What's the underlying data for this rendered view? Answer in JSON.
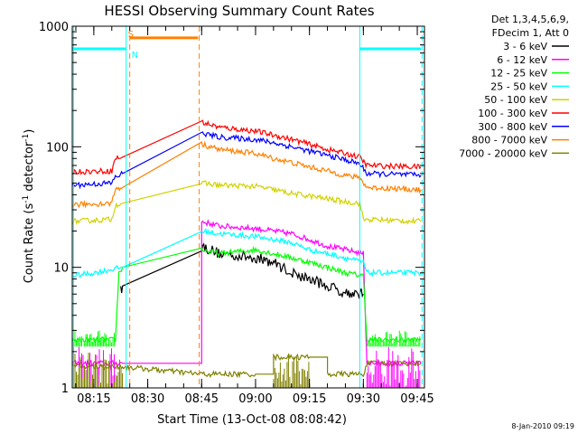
{
  "chart_data": {
    "type": "line",
    "title": "HESSI Observing Summary Count Rates",
    "xlabel": "Start Time (13-Oct-08 08:08:42)",
    "ylabel": "Count Rate (s",
    "ylabel_sup1": "-1",
    "ylabel_mid": " detector",
    "ylabel_sup2": "-1",
    "ylabel_end": ")",
    "yscale": "log",
    "xlim": [
      "08:09",
      "09:47"
    ],
    "ylim": [
      1,
      1000
    ],
    "xticks": [
      "08:15",
      "08:30",
      "08:45",
      "09:00",
      "09:15",
      "09:30",
      "09:45"
    ],
    "yticks": [
      "1",
      "10",
      "100",
      "1000"
    ],
    "legend_title_lines": [
      "Det 1,3,4,5,6,9,",
      "FDecim 1, Att 0"
    ],
    "legend_position": "outside-right",
    "footer_date": "8-Jan-2010 09:19",
    "flags": [
      {
        "label": "S",
        "color": "#ff8000",
        "value": 800
      },
      {
        "label": "N",
        "color": "#00ffff",
        "value": 650
      }
    ],
    "series": [
      {
        "name": "3 - 6 keV",
        "color": "#000000",
        "points": [
          [
            "08:22:30",
            6.5
          ],
          [
            "08:23",
            7
          ],
          [
            "08:45",
            15
          ],
          [
            "08:50",
            13
          ],
          [
            "09:00",
            12
          ],
          [
            "09:05",
            11
          ],
          [
            "09:10",
            9
          ],
          [
            "09:15",
            8
          ],
          [
            "09:20",
            7
          ],
          [
            "09:25",
            6.2
          ],
          [
            "09:30",
            6
          ]
        ]
      },
      {
        "name": "6 - 12 keV",
        "color": "#ff00ff",
        "points": [
          [
            "08:09",
            1.6
          ],
          [
            "08:23",
            1.6
          ],
          [
            "08:45",
            24
          ],
          [
            "08:50",
            22
          ],
          [
            "09:00",
            21
          ],
          [
            "09:05",
            20
          ],
          [
            "09:10",
            19
          ],
          [
            "09:15",
            17
          ],
          [
            "09:20",
            15
          ],
          [
            "09:25",
            14
          ],
          [
            "09:30",
            13
          ],
          [
            "09:31",
            1.6
          ],
          [
            "09:46",
            1.6
          ]
        ]
      },
      {
        "name": "12 - 25 keV",
        "color": "#00ff00",
        "points": [
          [
            "08:09",
            2.5
          ],
          [
            "08:21",
            2.5
          ],
          [
            "08:22",
            9
          ],
          [
            "08:23",
            10
          ],
          [
            "08:45",
            14
          ],
          [
            "08:50",
            13
          ],
          [
            "09:00",
            14
          ],
          [
            "09:05",
            13
          ],
          [
            "09:10",
            12
          ],
          [
            "09:15",
            11
          ],
          [
            "09:20",
            10
          ],
          [
            "09:25",
            9
          ],
          [
            "09:30",
            8.5
          ],
          [
            "09:31",
            2.5
          ],
          [
            "09:46",
            2.5
          ]
        ]
      },
      {
        "name": "25 - 50 keV",
        "color": "#00ffff",
        "points": [
          [
            "08:09",
            8.5
          ],
          [
            "08:15",
            9
          ],
          [
            "08:23",
            10
          ],
          [
            "08:45",
            20
          ],
          [
            "08:50",
            19
          ],
          [
            "09:00",
            18
          ],
          [
            "09:05",
            17
          ],
          [
            "09:10",
            16
          ],
          [
            "09:15",
            14
          ],
          [
            "09:20",
            13
          ],
          [
            "09:25",
            12
          ],
          [
            "09:30",
            11
          ],
          [
            "09:31",
            9
          ],
          [
            "09:46",
            9
          ]
        ]
      },
      {
        "name": "50 - 100 keV",
        "color": "#d2d200",
        "points": [
          [
            "08:09",
            24
          ],
          [
            "08:20",
            25
          ],
          [
            "08:21",
            33
          ],
          [
            "08:23",
            34
          ],
          [
            "08:45",
            50
          ],
          [
            "08:50",
            48
          ],
          [
            "09:00",
            47
          ],
          [
            "09:05",
            44
          ],
          [
            "09:10",
            41
          ],
          [
            "09:15",
            39
          ],
          [
            "09:20",
            37
          ],
          [
            "09:25",
            35
          ],
          [
            "09:29",
            34
          ],
          [
            "09:30",
            25
          ],
          [
            "09:46",
            24
          ]
        ]
      },
      {
        "name": "100 - 300 keV",
        "color": "#ff0000",
        "points": [
          [
            "08:09",
            62
          ],
          [
            "08:20",
            63
          ],
          [
            "08:21",
            80
          ],
          [
            "08:23",
            82
          ],
          [
            "08:45",
            160
          ],
          [
            "08:50",
            145
          ],
          [
            "09:00",
            135
          ],
          [
            "09:05",
            125
          ],
          [
            "09:10",
            115
          ],
          [
            "09:15",
            105
          ],
          [
            "09:20",
            95
          ],
          [
            "09:25",
            88
          ],
          [
            "09:29",
            82
          ],
          [
            "09:31",
            70
          ],
          [
            "09:46",
            68
          ]
        ]
      },
      {
        "name": "300 - 800 keV",
        "color": "#0000ff",
        "points": [
          [
            "08:09",
            48
          ],
          [
            "08:20",
            50
          ],
          [
            "08:21",
            56
          ],
          [
            "08:23",
            60
          ],
          [
            "08:45",
            130
          ],
          [
            "08:50",
            120
          ],
          [
            "09:00",
            115
          ],
          [
            "09:05",
            108
          ],
          [
            "09:10",
            100
          ],
          [
            "09:15",
            92
          ],
          [
            "09:20",
            85
          ],
          [
            "09:25",
            78
          ],
          [
            "09:29",
            72
          ],
          [
            "09:31",
            60
          ],
          [
            "09:46",
            58
          ]
        ]
      },
      {
        "name": "800 - 7000 keV",
        "color": "#ff8000",
        "points": [
          [
            "08:09",
            33
          ],
          [
            "08:20",
            34
          ],
          [
            "08:21",
            45
          ],
          [
            "08:23",
            46
          ],
          [
            "08:45",
            105
          ],
          [
            "08:50",
            95
          ],
          [
            "09:00",
            88
          ],
          [
            "09:05",
            80
          ],
          [
            "09:10",
            74
          ],
          [
            "09:15",
            68
          ],
          [
            "09:20",
            63
          ],
          [
            "09:25",
            58
          ],
          [
            "09:29",
            55
          ],
          [
            "09:31",
            46
          ],
          [
            "09:46",
            44
          ]
        ]
      },
      {
        "name": "7000 - 20000 keV",
        "color": "#808000",
        "points": [
          [
            "08:09",
            1.5
          ],
          [
            "08:23",
            1.5
          ],
          [
            "08:45",
            1.3
          ],
          [
            "09:00",
            1.3
          ],
          [
            "09:05",
            1.8
          ],
          [
            "09:15",
            1.8
          ],
          [
            "09:20",
            1.3
          ],
          [
            "09:30",
            1.3
          ],
          [
            "09:31",
            1.6
          ],
          [
            "09:46",
            1.6
          ]
        ]
      }
    ]
  }
}
